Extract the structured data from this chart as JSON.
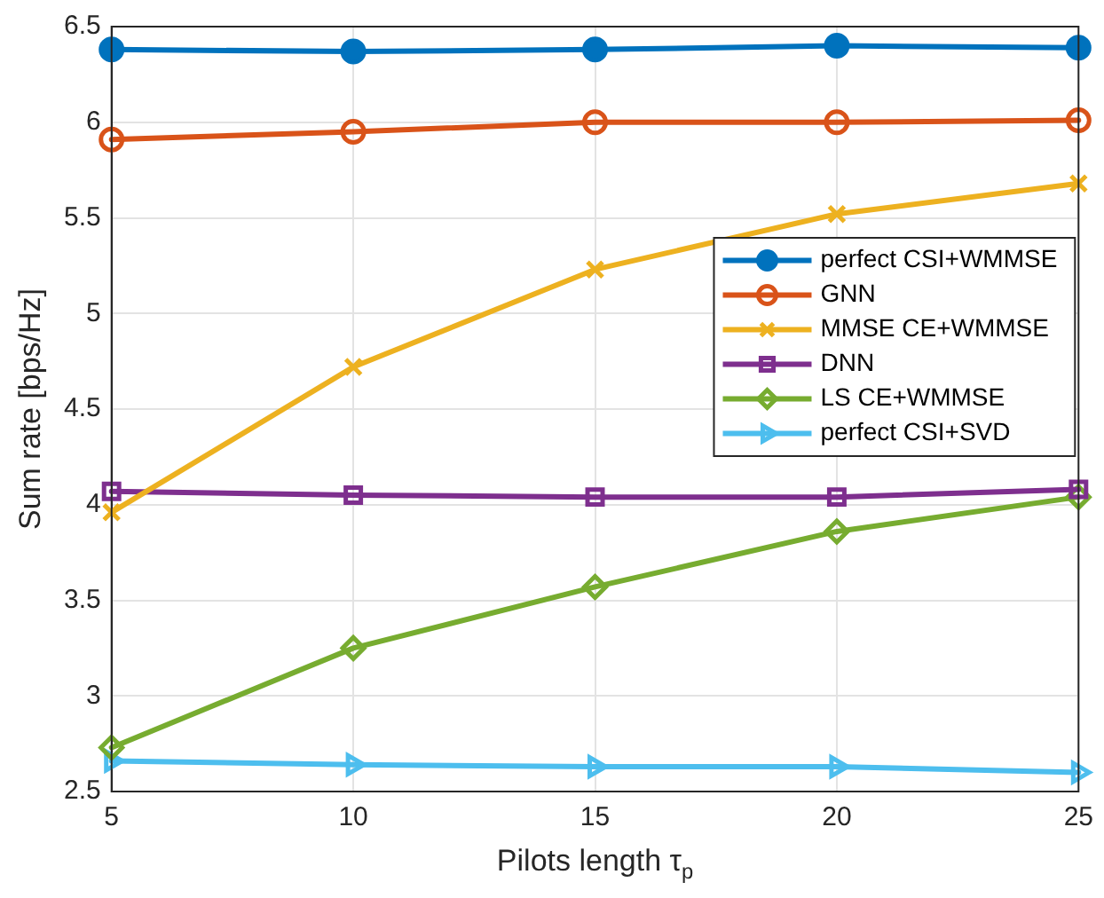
{
  "chart_data": {
    "type": "line",
    "xlabel": "Pilots length τ$_{p}$",
    "ylabel": "Sum rate [bps/Hz]",
    "x": [
      5,
      10,
      15,
      20,
      25
    ],
    "xlim": [
      5,
      25
    ],
    "xticks": [
      5,
      10,
      15,
      20,
      25
    ],
    "ylim": [
      2.5,
      6.5
    ],
    "yticks": [
      2.5,
      3,
      3.5,
      4,
      4.5,
      5,
      5.5,
      6,
      6.5
    ],
    "grid": true,
    "legend": "right",
    "series": [
      {
        "name": "perfect CSI+WMMSE",
        "color": "#0072bd",
        "marker": "circle",
        "values": [
          6.38,
          6.37,
          6.38,
          6.4,
          6.39
        ]
      },
      {
        "name": "GNN",
        "color": "#d95319",
        "marker": "circle",
        "values": [
          5.91,
          5.95,
          6.0,
          6.0,
          6.01
        ]
      },
      {
        "name": "MMSE CE+WMMSE",
        "color": "#edb120",
        "marker": "cross",
        "values": [
          3.96,
          4.72,
          5.23,
          5.52,
          5.68
        ]
      },
      {
        "name": "DNN",
        "color": "#7e2f8e",
        "marker": "square",
        "values": [
          4.07,
          4.05,
          4.04,
          4.04,
          4.08
        ]
      },
      {
        "name": "LS CE+WMMSE",
        "color": "#77ac30",
        "marker": "diamond",
        "values": [
          2.73,
          3.25,
          3.57,
          3.86,
          4.04
        ]
      },
      {
        "name": "perfect CSI+SVD",
        "color": "#4dbeee",
        "marker": "triangle",
        "values": [
          2.66,
          2.64,
          2.63,
          2.63,
          2.6
        ]
      }
    ]
  }
}
